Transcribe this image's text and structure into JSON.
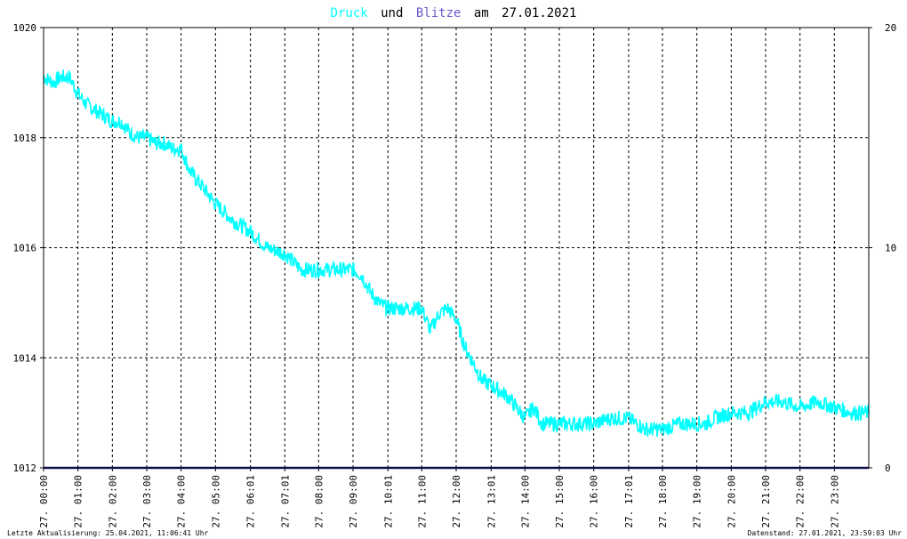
{
  "title": {
    "word1": "Druck",
    "word2": "und",
    "word3": "Blitze",
    "word4": "am",
    "date": "27.01.2021"
  },
  "colors": {
    "druck": "#00ffff",
    "blitze": "#6a5acd",
    "blitze_line": "#1a1a8c",
    "text": "#000000",
    "grid": "#000000"
  },
  "footer": {
    "left": "Letzte Aktualisierung: 25.04.2021, 11:06:41 Uhr",
    "right": "Datenstand: 27.01.2021, 23:59:03 Uhr"
  },
  "chart_data": {
    "type": "line",
    "title": "Druck und Blitze am 27.01.2021",
    "x_ticks": [
      "27. 00:00",
      "27. 01:00",
      "27. 02:00",
      "27. 03:00",
      "27. 04:00",
      "27. 05:00",
      "27. 06:01",
      "27. 07:01",
      "27. 08:00",
      "27. 09:00",
      "27. 10:01",
      "27. 11:00",
      "27. 12:00",
      "27. 13:01",
      "27. 14:00",
      "27. 15:00",
      "27. 16:00",
      "27. 17:01",
      "27. 18:00",
      "27. 19:00",
      "27. 20:00",
      "27. 21:00",
      "27. 22:00",
      "27. 23:00"
    ],
    "xlim_hours": [
      0,
      24
    ],
    "y_left": {
      "ticks": [
        "1012",
        "1014",
        "1016",
        "1018",
        "1020"
      ],
      "ylim": [
        1012,
        1020
      ]
    },
    "y_right": {
      "ticks": [
        "0",
        "10",
        "20"
      ],
      "ylim": [
        0,
        20
      ]
    },
    "grid": true,
    "series": [
      {
        "name": "Druck",
        "axis": "left",
        "x_hours": [
          0,
          0.3,
          0.5,
          0.75,
          1.0,
          1.25,
          1.5,
          1.75,
          2.0,
          2.25,
          2.5,
          2.75,
          3.0,
          3.25,
          3.5,
          3.75,
          4.0,
          4.25,
          4.5,
          4.75,
          5.0,
          5.5,
          6.0,
          6.5,
          7.0,
          7.5,
          8.0,
          8.5,
          9.0,
          9.25,
          9.5,
          9.75,
          10.0,
          10.5,
          11.0,
          11.25,
          11.5,
          11.75,
          12.0,
          12.25,
          12.5,
          12.75,
          13.0,
          13.5,
          14.0,
          14.25,
          14.5,
          15.0,
          15.5,
          16.0,
          16.5,
          17.0,
          17.5,
          18.0,
          18.5,
          19.0,
          19.25,
          19.5,
          20.0,
          20.5,
          21.0,
          21.5,
          22.0,
          22.5,
          23.0,
          23.5,
          23.75
        ],
        "values": [
          1019.1,
          1019.0,
          1019.1,
          1019.1,
          1018.8,
          1018.6,
          1018.5,
          1018.4,
          1018.3,
          1018.3,
          1018.1,
          1018.0,
          1018.0,
          1017.9,
          1017.9,
          1017.8,
          1017.8,
          1017.4,
          1017.2,
          1017.0,
          1016.8,
          1016.5,
          1016.3,
          1016.0,
          1015.9,
          1015.6,
          1015.6,
          1015.6,
          1015.6,
          1015.5,
          1015.2,
          1015.0,
          1014.9,
          1014.9,
          1014.9,
          1014.5,
          1014.8,
          1014.9,
          1014.7,
          1014.2,
          1013.9,
          1013.6,
          1013.5,
          1013.3,
          1012.9,
          1013.1,
          1012.8,
          1012.8,
          1012.8,
          1012.8,
          1012.9,
          1012.9,
          1012.7,
          1012.7,
          1012.8,
          1012.8,
          1012.8,
          1012.9,
          1013.0,
          1013.0,
          1013.2,
          1013.2,
          1013.1,
          1013.2,
          1013.1,
          1013.0,
          1013.0
        ]
      },
      {
        "name": "Blitze",
        "axis": "right",
        "x_hours": [
          0,
          24
        ],
        "values": [
          0,
          0
        ]
      }
    ]
  }
}
